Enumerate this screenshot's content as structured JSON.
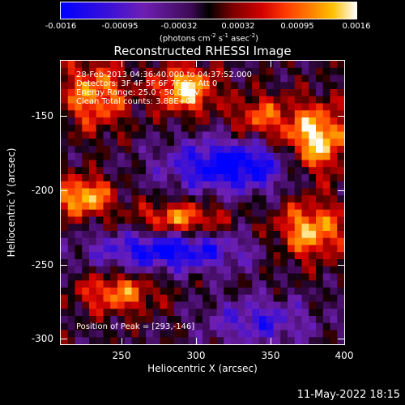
{
  "colorbar": {
    "ticks": [
      "-0.0016",
      "-0.00095",
      "-0.00032",
      "0.00032",
      "0.00095",
      "0.0016"
    ],
    "unit_prefix": "(photons cm",
    "unit_exp1": "-2",
    "unit_mid1": " s",
    "unit_exp2": "-1",
    "unit_mid2": " asec",
    "unit_exp3": "-2",
    "unit_suffix": ")"
  },
  "plot": {
    "title": "Reconstructed RHESSI Image",
    "info_lines": [
      "28-Feb-2013 04:36:40.000 to 04:37:52.000",
      "Detectors: 3F 4F 5F 6F 7F 8F, Att 0",
      "Energy Range: 25.0 - 50.0 keV",
      "Clean     Total counts: 3.88E+03"
    ],
    "peak_text": "Position of Peak = [293,-146]",
    "xlabel": "Heliocentric X (arcsec)",
    "ylabel": "Heliocentric Y (arcsec)",
    "xticks": [
      "250",
      "300",
      "350",
      "400"
    ],
    "yticks": [
      "-150",
      "-200",
      "-250",
      "-300"
    ]
  },
  "footer": {
    "timestamp": "11-May-2022 18:15"
  },
  "chart_data": {
    "type": "heatmap",
    "title": "Reconstructed RHESSI Image",
    "xlabel": "Heliocentric X (arcsec)",
    "ylabel": "Heliocentric Y (arcsec)",
    "xlim": [
      210,
      400
    ],
    "ylim": [
      -305,
      -115
    ],
    "colorscale_range": [
      -0.0016,
      0.0016
    ],
    "colorscale": "blue-purple-black-red-orange-yellow-white",
    "grid": false
  }
}
